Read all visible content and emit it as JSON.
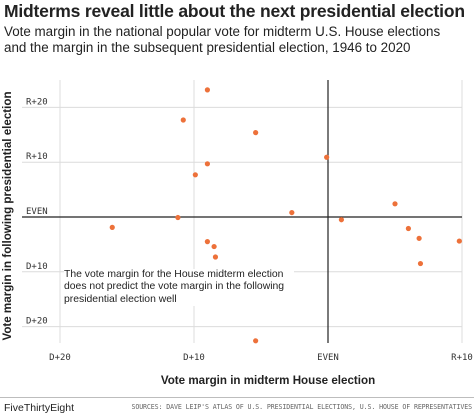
{
  "header": {
    "title": "Midterms reveal little about the next presidential election",
    "subtitle_line1": "Vote margin in the national popular vote for midterm U.S. House elections",
    "subtitle_line2": " and the margin in the subsequent presidential election, 1946 to 2020"
  },
  "annotation": {
    "text": "The vote margin for the House midterm election does not predict the vote margin in the following presidential election well"
  },
  "footer": {
    "brand": "FiveThirtyEight",
    "source": "SOURCES: DAVE LEIP'S ATLAS OF U.S. PRESIDENTIAL ELECTIONS, U.S. HOUSE OF REPRESENTATIVES"
  },
  "colors": {
    "point": "#ed713a",
    "grid": "#dcdcdc",
    "axis": "#222222",
    "background": "#ffffff"
  },
  "chart_data": {
    "type": "scatter",
    "xlabel": "Vote margin in midterm House election",
    "ylabel": "Vote margin in following presidential election",
    "xlim": [
      -20,
      10
    ],
    "ylim": [
      -23,
      25
    ],
    "x_ticks": [
      {
        "value": -20,
        "label": "D+20"
      },
      {
        "value": -10,
        "label": "D+10"
      },
      {
        "value": 0,
        "label": "EVEN"
      },
      {
        "value": 10,
        "label": "R+10"
      }
    ],
    "y_ticks": [
      {
        "value": 20,
        "label": "R+20"
      },
      {
        "value": 10,
        "label": "R+10"
      },
      {
        "value": 0,
        "label": "EVEN"
      },
      {
        "value": -10,
        "label": "D+10"
      },
      {
        "value": -20,
        "label": "D+20"
      }
    ],
    "grid": true,
    "points": [
      {
        "x": -16.1,
        "y": -1.9
      },
      {
        "x": -11.2,
        "y": -0.1
      },
      {
        "x": -10.8,
        "y": 17.7
      },
      {
        "x": -9.9,
        "y": 7.7
      },
      {
        "x": -9.0,
        "y": 23.2
      },
      {
        "x": -9.0,
        "y": -4.5
      },
      {
        "x": -9.0,
        "y": 9.7
      },
      {
        "x": -8.5,
        "y": -5.4
      },
      {
        "x": -8.4,
        "y": -7.3
      },
      {
        "x": -5.4,
        "y": 15.4
      },
      {
        "x": -5.4,
        "y": -22.6
      },
      {
        "x": -2.7,
        "y": 0.8
      },
      {
        "x": -0.1,
        "y": 10.9
      },
      {
        "x": 1.0,
        "y": -0.5
      },
      {
        "x": 5.0,
        "y": 2.4
      },
      {
        "x": 6.0,
        "y": -2.1
      },
      {
        "x": 6.8,
        "y": -3.9
      },
      {
        "x": 6.9,
        "y": -8.5
      },
      {
        "x": 9.8,
        "y": -4.4
      }
    ]
  }
}
